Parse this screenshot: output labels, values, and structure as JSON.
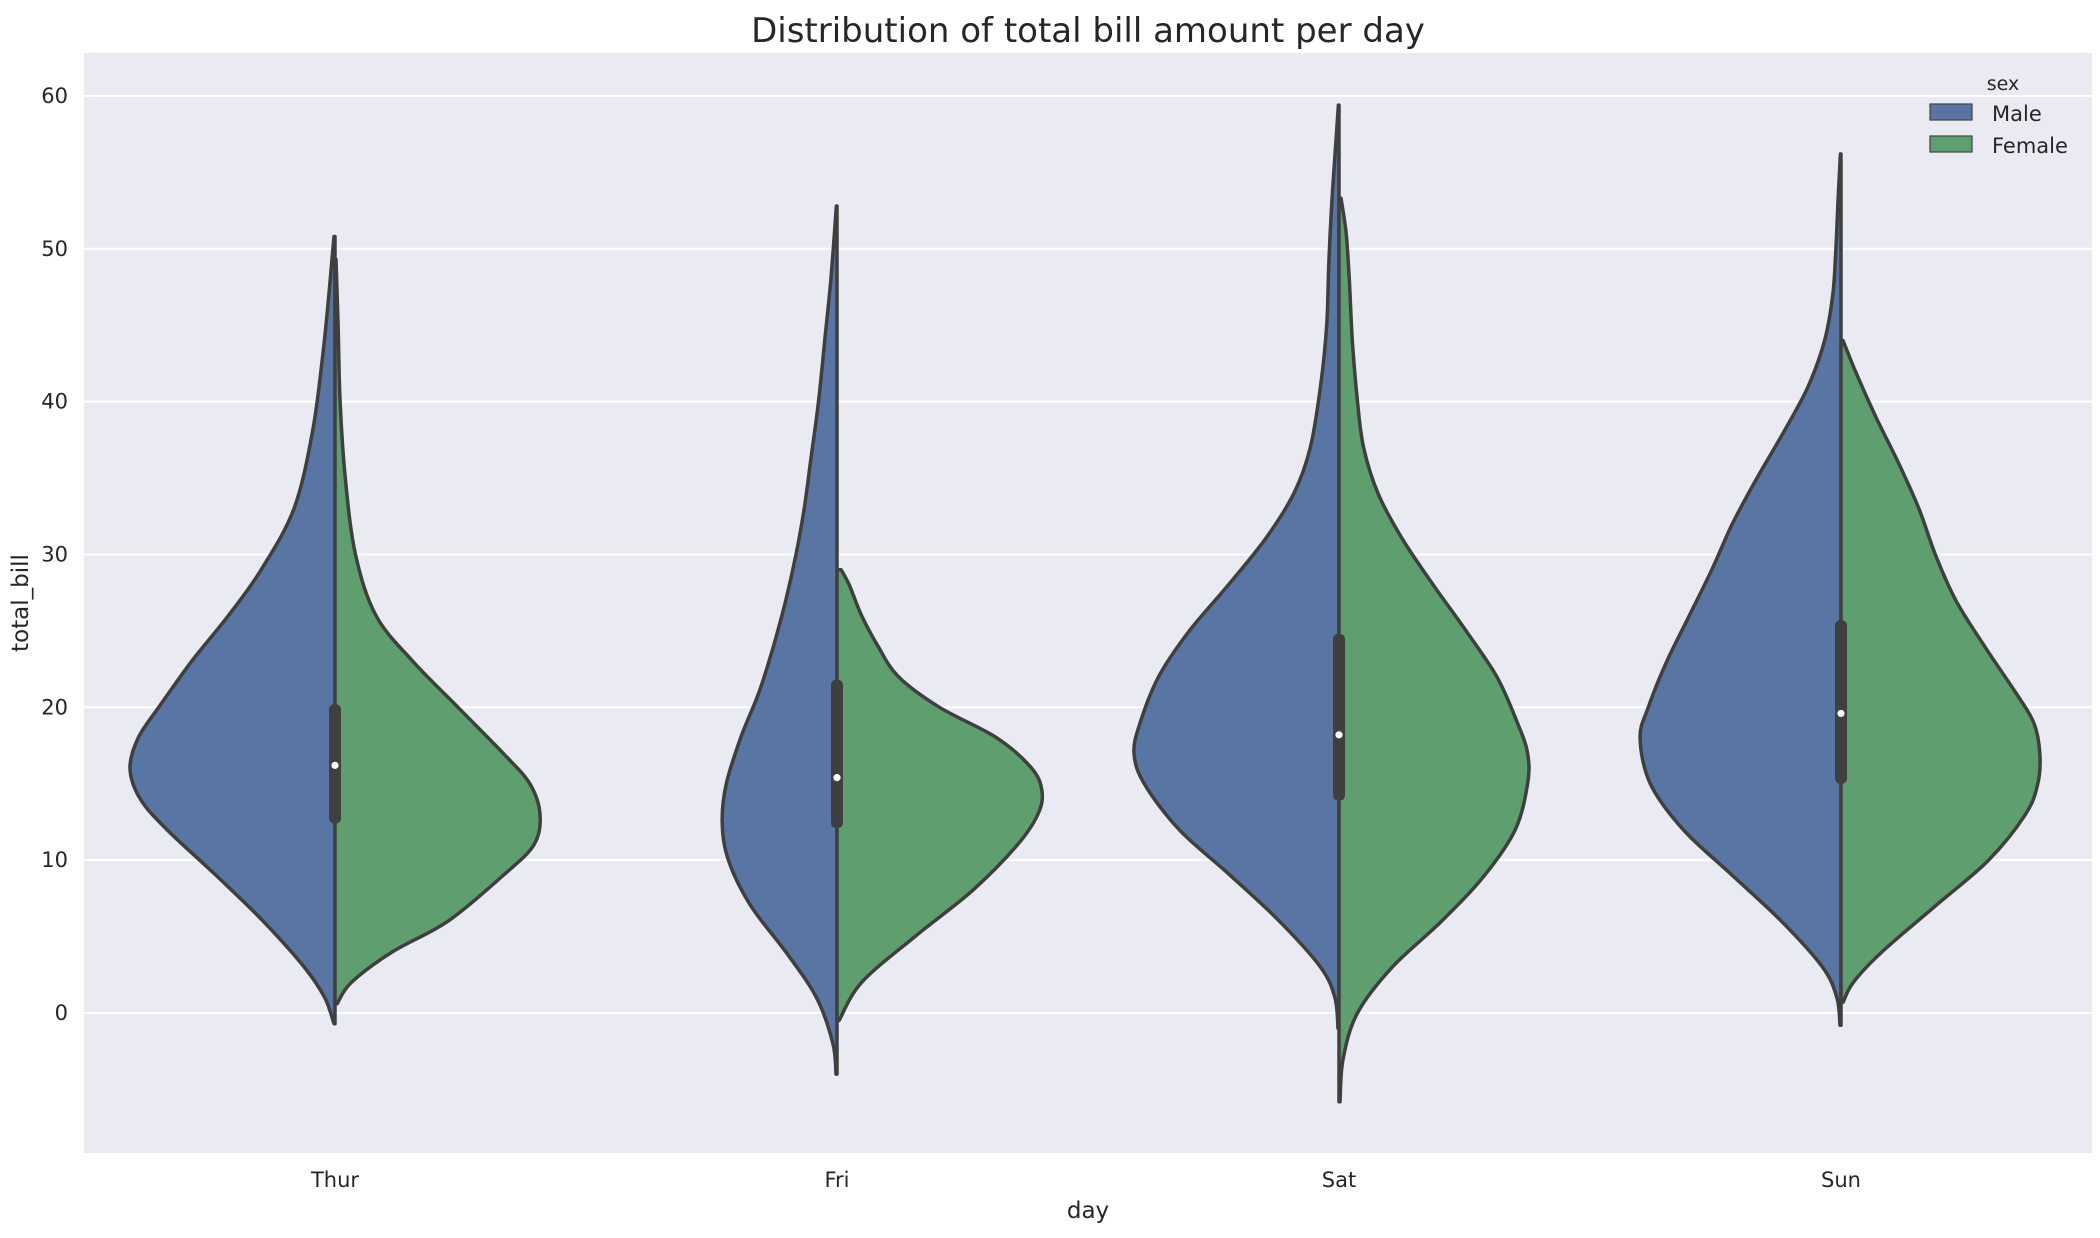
{
  "chart_data": {
    "type": "violin",
    "title": "Distribution of total bill amount per day",
    "xlabel": "day",
    "ylabel": "total_bill",
    "ylim": [
      -9,
      63
    ],
    "yticks": [
      0,
      10,
      20,
      30,
      40,
      50,
      60
    ],
    "categories": [
      "Thur",
      "Fri",
      "Sat",
      "Sun"
    ],
    "split": true,
    "grid": true,
    "legend": {
      "title": "sex",
      "placement": "top-right"
    },
    "series": [
      {
        "name": "Male",
        "color": "#5975a4"
      },
      {
        "name": "Female",
        "color": "#5f9e6e"
      }
    ],
    "violins": [
      {
        "category": "Thur",
        "male": {
          "profile": [
            [
              -0.7,
              0.005
            ],
            [
              1,
              0.05
            ],
            [
              3,
              0.15
            ],
            [
              6,
              0.35
            ],
            [
              9,
              0.58
            ],
            [
              12,
              0.82
            ],
            [
              14,
              0.95
            ],
            [
              16,
              1.0
            ],
            [
              18,
              0.96
            ],
            [
              20,
              0.86
            ],
            [
              23,
              0.7
            ],
            [
              26,
              0.52
            ],
            [
              29,
              0.36
            ],
            [
              33,
              0.2
            ],
            [
              38,
              0.11
            ],
            [
              43,
              0.06
            ],
            [
              47,
              0.03
            ],
            [
              50.8,
              0.005
            ]
          ]
        },
        "female": {
          "profile": [
            [
              0.6,
              0.01
            ],
            [
              2,
              0.08
            ],
            [
              4,
              0.28
            ],
            [
              6,
              0.55
            ],
            [
              9,
              0.82
            ],
            [
              11,
              0.97
            ],
            [
              13,
              1.0
            ],
            [
              15,
              0.95
            ],
            [
              17,
              0.82
            ],
            [
              20,
              0.6
            ],
            [
              23,
              0.38
            ],
            [
              26,
              0.2
            ],
            [
              30,
              0.1
            ],
            [
              35,
              0.05
            ],
            [
              40,
              0.025
            ],
            [
              45,
              0.015
            ],
            [
              49.3,
              0.005
            ]
          ]
        },
        "box": {
          "q1": 12.4,
          "median": 16.2,
          "q3": 20.2
        }
      },
      {
        "category": "Fri",
        "male": {
          "profile": [
            [
              -4,
              0.005
            ],
            [
              -2,
              0.02
            ],
            [
              1,
              0.1
            ],
            [
              4,
              0.25
            ],
            [
              7,
              0.42
            ],
            [
              10,
              0.53
            ],
            [
              12.5,
              0.56
            ],
            [
              15,
              0.54
            ],
            [
              18,
              0.47
            ],
            [
              21,
              0.38
            ],
            [
              24,
              0.31
            ],
            [
              27,
              0.25
            ],
            [
              30,
              0.2
            ],
            [
              33,
              0.16
            ],
            [
              36,
              0.13
            ],
            [
              40,
              0.09
            ],
            [
              44,
              0.06
            ],
            [
              48,
              0.03
            ],
            [
              52.8,
              0.003
            ]
          ]
        },
        "female": {
          "profile": [
            [
              -0.5,
              0.01
            ],
            [
              2,
              0.12
            ],
            [
              5,
              0.38
            ],
            [
              8,
              0.66
            ],
            [
              11,
              0.88
            ],
            [
              13,
              0.98
            ],
            [
              14.5,
              1.0
            ],
            [
              16,
              0.95
            ],
            [
              18,
              0.78
            ],
            [
              20,
              0.5
            ],
            [
              22,
              0.3
            ],
            [
              24,
              0.2
            ],
            [
              26,
              0.12
            ],
            [
              28,
              0.06
            ],
            [
              29,
              0.02
            ]
          ]
        },
        "box": {
          "q1": 12.1,
          "median": 15.4,
          "q3": 21.8
        }
      },
      {
        "category": "Sat",
        "male": {
          "profile": [
            [
              -1,
              0.005
            ],
            [
              1,
              0.02
            ],
            [
              3,
              0.09
            ],
            [
              6,
              0.29
            ],
            [
              9,
              0.53
            ],
            [
              12,
              0.78
            ],
            [
              15,
              0.95
            ],
            [
              17,
              1.0
            ],
            [
              19,
              0.97
            ],
            [
              22,
              0.88
            ],
            [
              25,
              0.73
            ],
            [
              28,
              0.54
            ],
            [
              31,
              0.36
            ],
            [
              34,
              0.22
            ],
            [
              37,
              0.14
            ],
            [
              41,
              0.09
            ],
            [
              45,
              0.06
            ],
            [
              49,
              0.05
            ],
            [
              53,
              0.035
            ],
            [
              57,
              0.015
            ],
            [
              59.4,
              0.003
            ]
          ]
        },
        "female": {
          "profile": [
            [
              -5.8,
              0.005
            ],
            [
              -3,
              0.02
            ],
            [
              0,
              0.09
            ],
            [
              3,
              0.26
            ],
            [
              6,
              0.5
            ],
            [
              9,
              0.71
            ],
            [
              12,
              0.86
            ],
            [
              15,
              0.92
            ],
            [
              17,
              0.92
            ],
            [
              19,
              0.87
            ],
            [
              22,
              0.77
            ],
            [
              25,
              0.62
            ],
            [
              28,
              0.46
            ],
            [
              31,
              0.31
            ],
            [
              34,
              0.19
            ],
            [
              37,
              0.12
            ],
            [
              40,
              0.09
            ],
            [
              44,
              0.065
            ],
            [
              48,
              0.05
            ],
            [
              51,
              0.035
            ],
            [
              53.3,
              0.01
            ]
          ]
        },
        "box": {
          "q1": 13.9,
          "median": 18.2,
          "q3": 24.8
        }
      },
      {
        "category": "Sun",
        "male": {
          "profile": [
            [
              -0.8,
              0.005
            ],
            [
              1,
              0.02
            ],
            [
              3,
              0.09
            ],
            [
              6,
              0.29
            ],
            [
              9,
              0.53
            ],
            [
              12,
              0.77
            ],
            [
              15,
              0.93
            ],
            [
              18,
              0.98
            ],
            [
              20,
              0.94
            ],
            [
              23,
              0.85
            ],
            [
              26,
              0.74
            ],
            [
              29,
              0.63
            ],
            [
              32,
              0.53
            ],
            [
              35,
              0.41
            ],
            [
              38,
              0.28
            ],
            [
              41,
              0.16
            ],
            [
              44,
              0.08
            ],
            [
              47,
              0.04
            ],
            [
              50,
              0.025
            ],
            [
              53,
              0.015
            ],
            [
              56.2,
              0.003
            ]
          ]
        },
        "female": {
          "profile": [
            [
              0.7,
              0.01
            ],
            [
              2,
              0.06
            ],
            [
              4,
              0.2
            ],
            [
              7,
              0.46
            ],
            [
              10,
              0.72
            ],
            [
              13,
              0.9
            ],
            [
              15,
              0.96
            ],
            [
              17,
              0.97
            ],
            [
              19,
              0.94
            ],
            [
              21,
              0.85
            ],
            [
              24,
              0.7
            ],
            [
              27,
              0.56
            ],
            [
              30,
              0.46
            ],
            [
              33,
              0.38
            ],
            [
              36,
              0.28
            ],
            [
              39,
              0.17
            ],
            [
              42,
              0.07
            ],
            [
              44,
              0.01
            ]
          ]
        },
        "box": {
          "q1": 15.0,
          "median": 19.6,
          "q3": 25.7
        }
      }
    ]
  }
}
